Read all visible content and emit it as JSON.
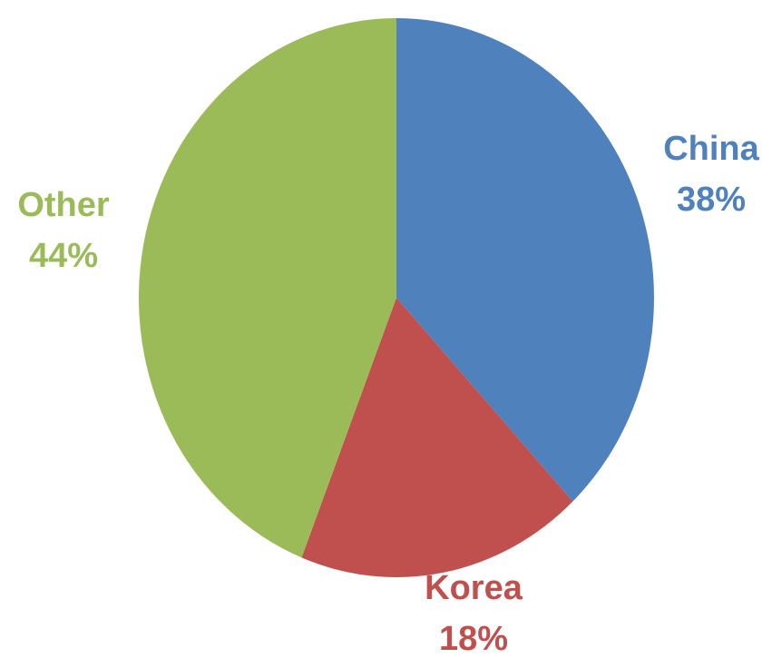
{
  "chart_data": {
    "type": "pie",
    "title": "",
    "slices": [
      {
        "label": "China",
        "value": 38,
        "display": "38%",
        "color": "#4f81bd"
      },
      {
        "label": "Korea",
        "value": 18,
        "display": "18%",
        "color": "#c0504d"
      },
      {
        "label": "Other",
        "value": 44,
        "display": "44%",
        "color": "#9bbb59"
      }
    ]
  }
}
